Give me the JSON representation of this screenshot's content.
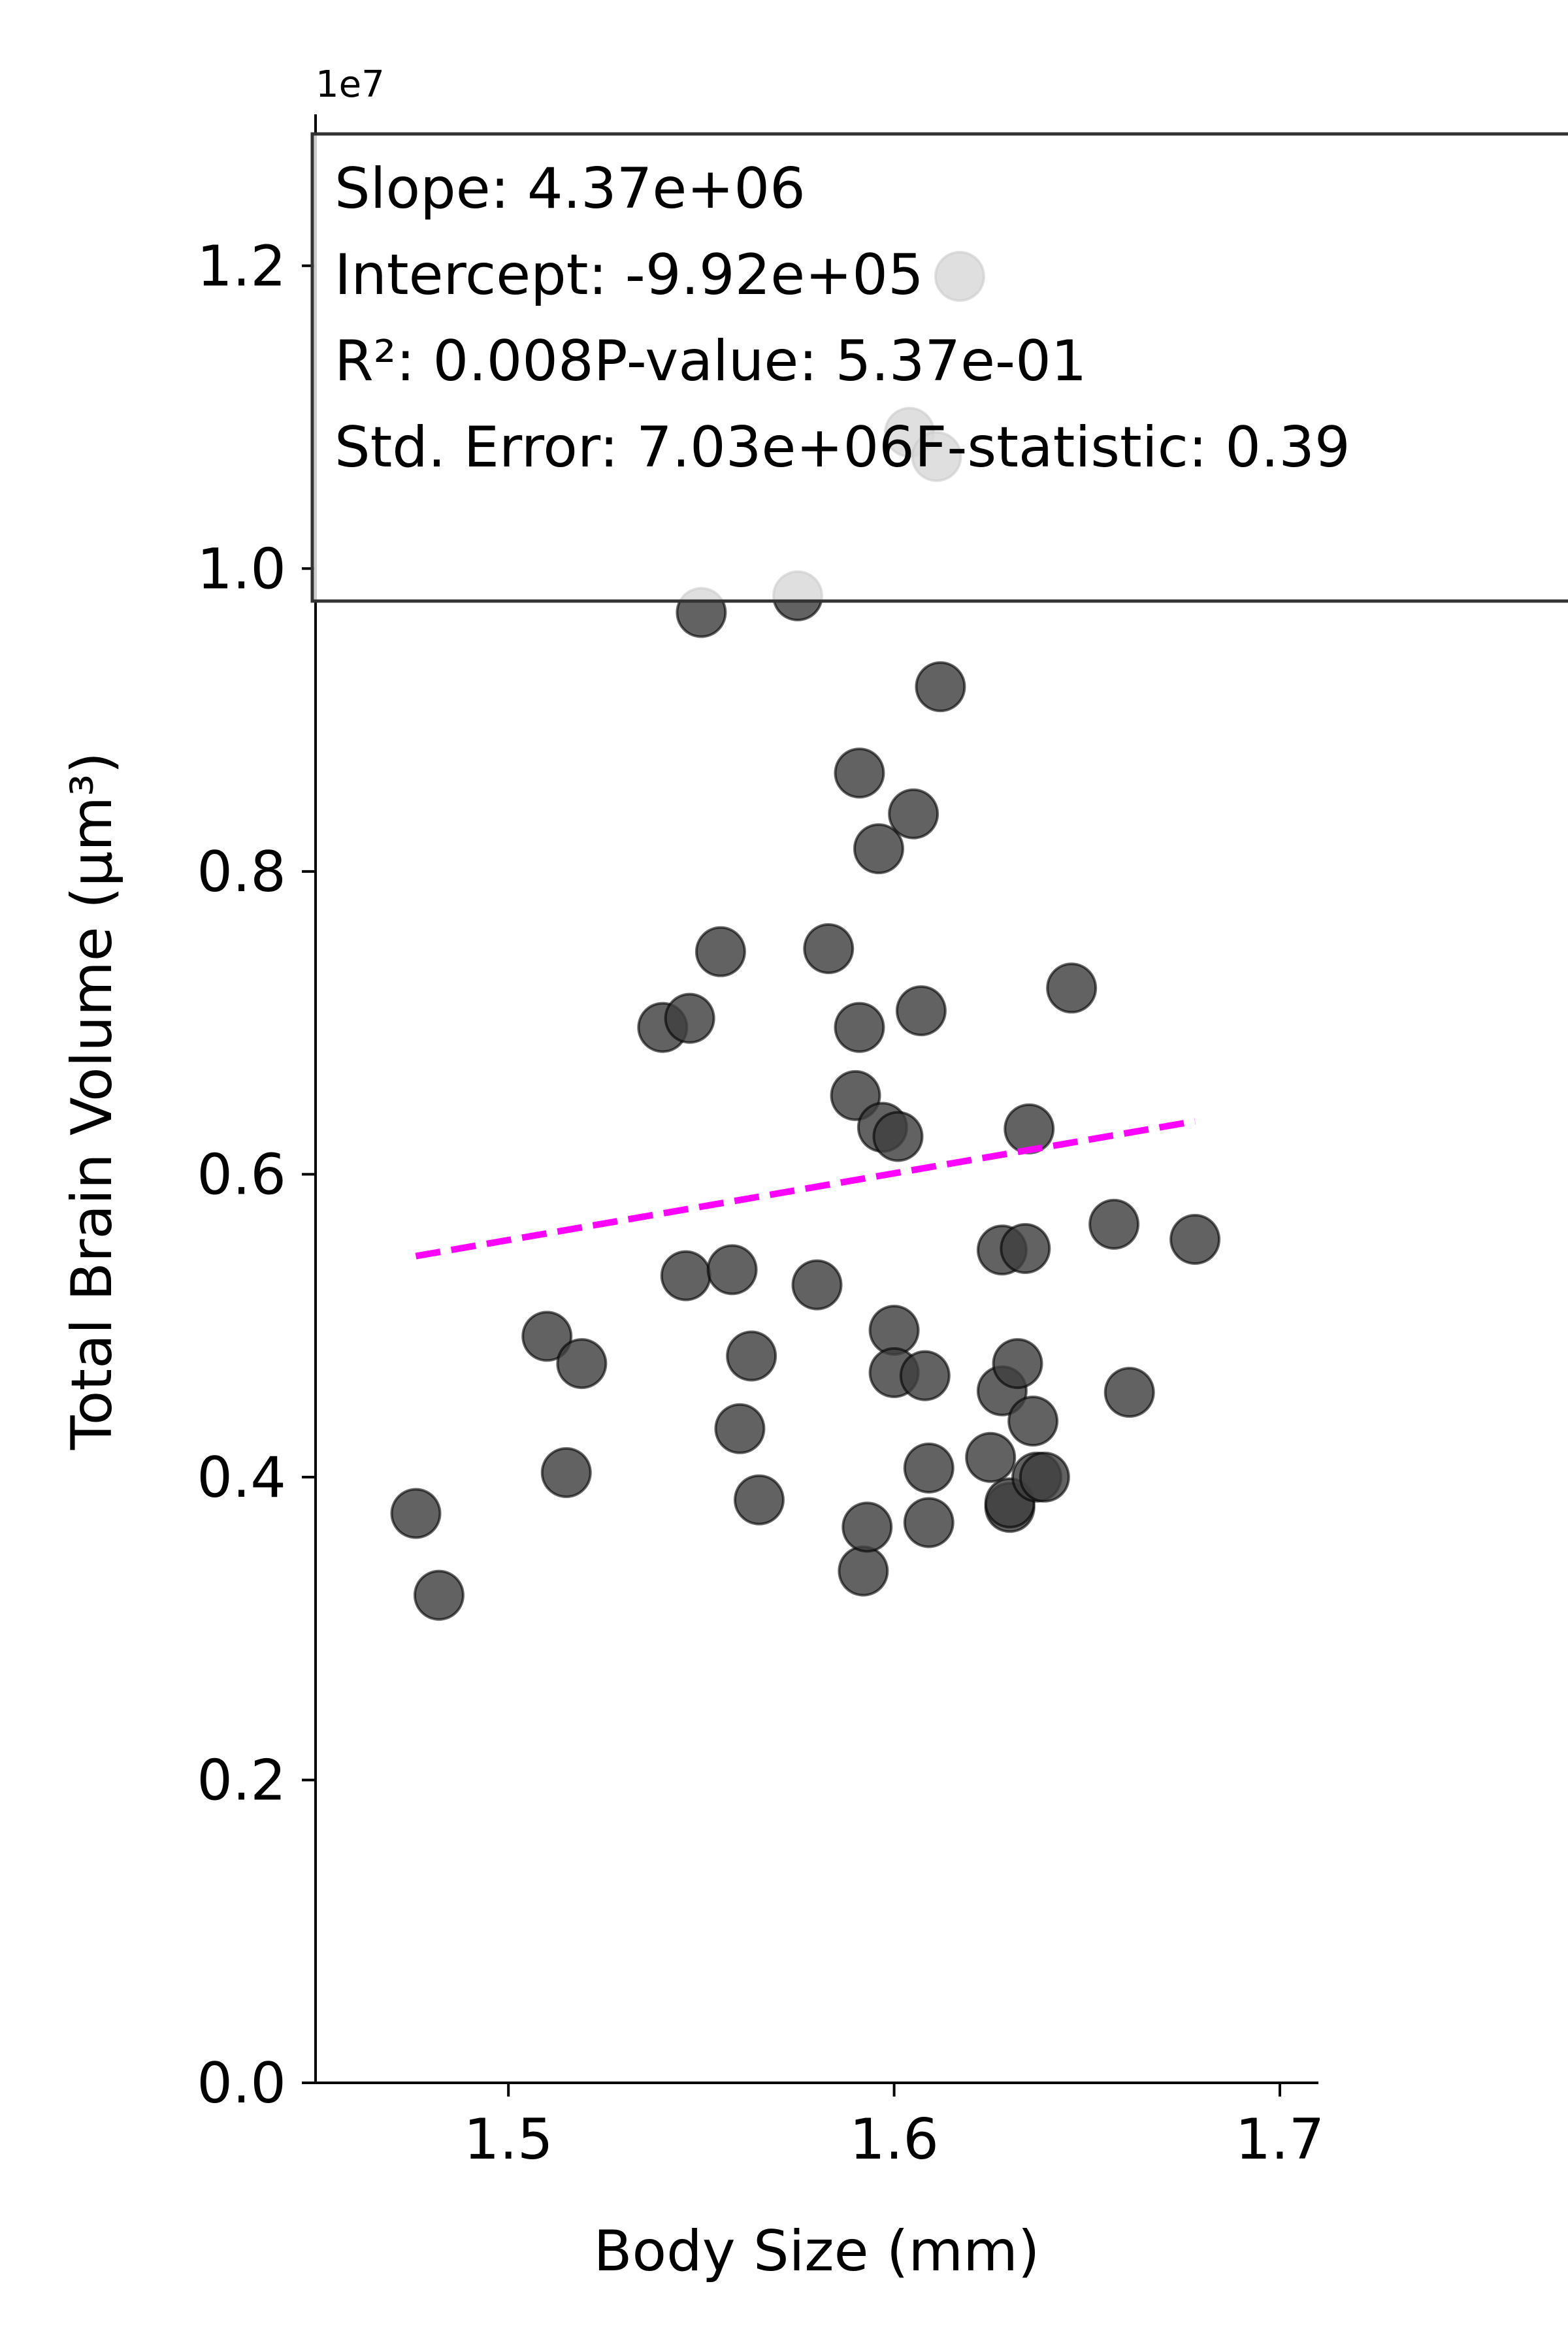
{
  "chart_data": {
    "type": "scatter",
    "xlabel": "Body Size (mm)",
    "ylabel": "Total Brain Volume (µm³)",
    "offset_text": "1e7",
    "xlim": [
      1.45,
      1.71
    ],
    "ylim": [
      0.0,
      1.3
    ],
    "xticks": [
      {
        "value": 1.5,
        "label": "1.5"
      },
      {
        "value": 1.6,
        "label": "1.6"
      },
      {
        "value": 1.7,
        "label": "1.7"
      }
    ],
    "yticks": [
      {
        "value": 0.0,
        "label": "0.0"
      },
      {
        "value": 0.2,
        "label": "0.2"
      },
      {
        "value": 0.4,
        "label": "0.4"
      },
      {
        "value": 0.6,
        "label": "0.6"
      },
      {
        "value": 0.8,
        "label": "0.8"
      },
      {
        "value": 1.0,
        "label": "1.0"
      },
      {
        "value": 1.2,
        "label": "1.2"
      }
    ],
    "grid": false,
    "series": [
      {
        "color": "#404040",
        "x": [
          1.476,
          1.482,
          1.51,
          1.515,
          1.519,
          1.54,
          1.547,
          1.546,
          1.55,
          1.555,
          1.558,
          1.56,
          1.563,
          1.565,
          1.575,
          1.58,
          1.583,
          1.59,
          1.591,
          1.591,
          1.592,
          1.593,
          1.596,
          1.597,
          1.6,
          1.6,
          1.601,
          1.604,
          1.605,
          1.607,
          1.608,
          1.609,
          1.609,
          1.611,
          1.612,
          1.617,
          1.625,
          1.628,
          1.628,
          1.63,
          1.63,
          1.632,
          1.634,
          1.635,
          1.636,
          1.637,
          1.639,
          1.646,
          1.657,
          1.661,
          1.678
        ],
        "y": [
          0.376,
          0.322,
          0.493,
          0.403,
          0.475,
          0.697,
          0.703,
          0.533,
          0.971,
          0.747,
          0.537,
          0.432,
          0.48,
          0.385,
          0.982,
          0.527,
          0.749,
          0.652,
          0.865,
          0.697,
          0.338,
          0.367,
          0.815,
          0.631,
          0.497,
          0.469,
          0.625,
          1.09,
          0.838,
          0.708,
          0.467,
          0.406,
          0.37,
          1.074,
          0.922,
          1.193,
          0.413,
          0.55,
          0.457,
          0.38,
          0.383,
          0.475,
          0.551,
          0.63,
          0.437,
          0.4,
          0.4,
          0.723,
          0.567,
          0.456,
          0.557
        ]
      }
    ],
    "fit_line": {
      "x": [
        1.476,
        1.678
      ],
      "y": [
        0.546,
        0.635
      ],
      "color": "#ff00ff",
      "style": "dashed"
    },
    "stats_box": {
      "lines": [
        "Slope: 4.37e+06",
        "Intercept: -9.92e+05",
        "R²: 0.008P-value: 5.37e-01",
        "Std. Error: 7.03e+06F-statistic: 0.39"
      ]
    }
  }
}
